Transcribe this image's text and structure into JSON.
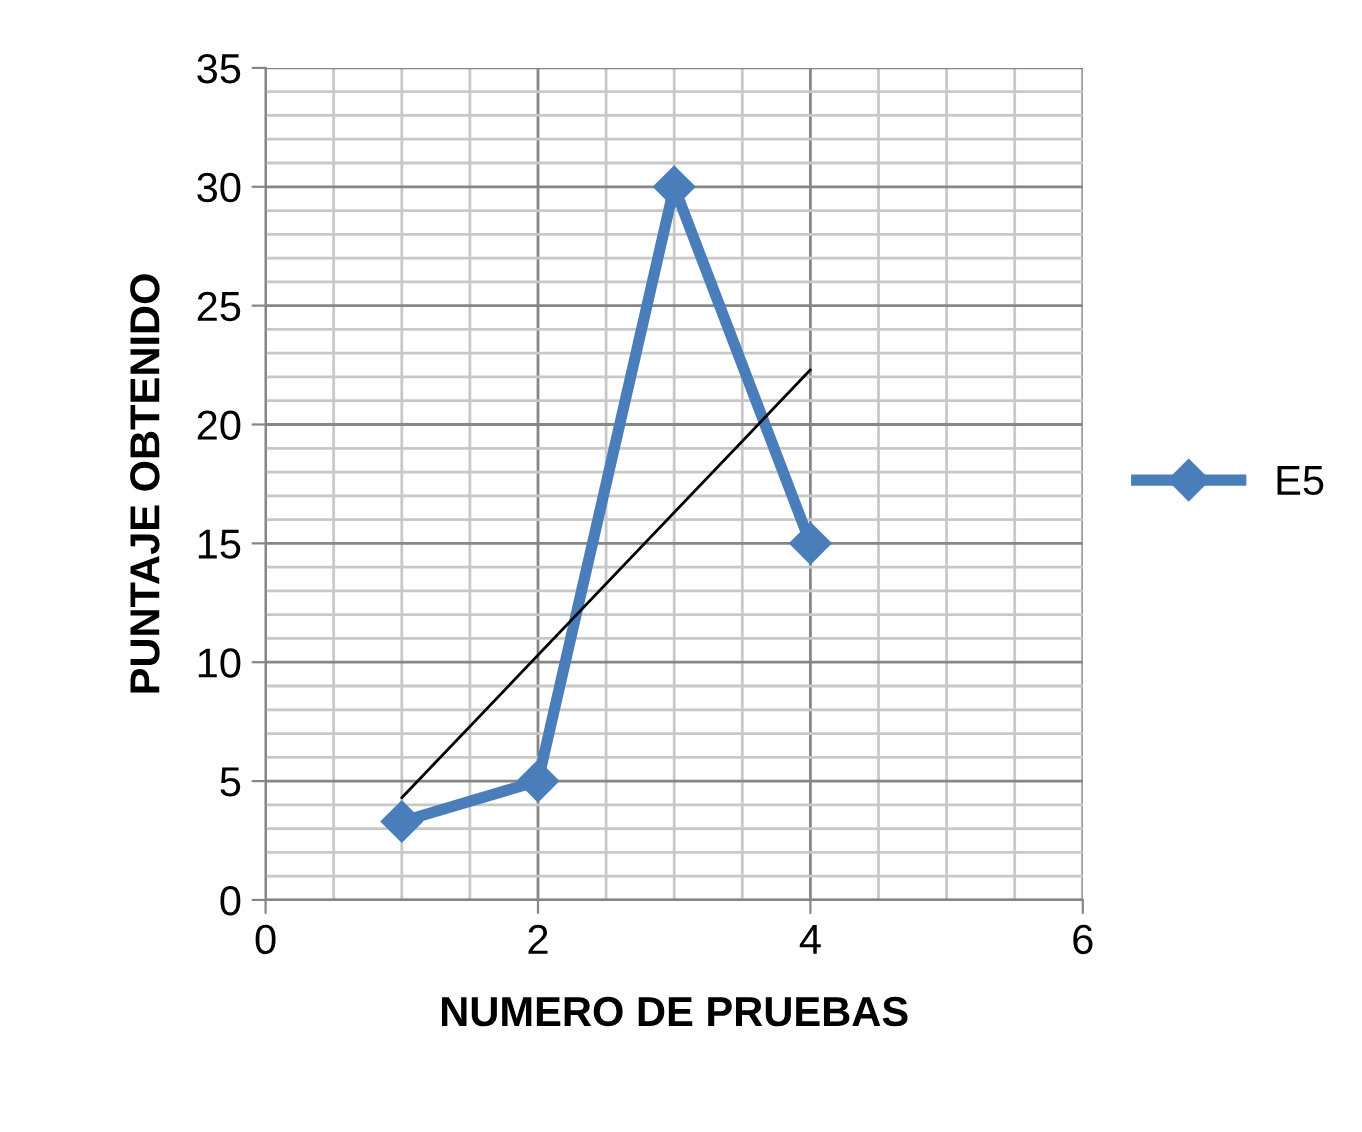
{
  "chart_data": {
    "type": "line",
    "xlabel": "NUMERO DE PRUEBAS",
    "ylabel": "PUNTAJE OBTENIDO",
    "series": [
      {
        "name": "E5",
        "color": "#4a7ebb",
        "marker": "diamond",
        "x": [
          1,
          2,
          3,
          4
        ],
        "values": [
          3.3,
          5,
          30,
          15
        ]
      },
      {
        "type": "line",
        "color": "#000000",
        "marker": "none",
        "x": [
          1,
          4
        ],
        "values": [
          4.3,
          22.3
        ]
      }
    ],
    "xlim": [
      0,
      6
    ],
    "xticks": [
      0,
      2,
      4,
      6
    ],
    "ylim": [
      0,
      35
    ],
    "yticks": [
      0,
      5,
      10,
      15,
      20,
      25,
      30,
      35
    ],
    "grid": true,
    "legend": "right"
  }
}
